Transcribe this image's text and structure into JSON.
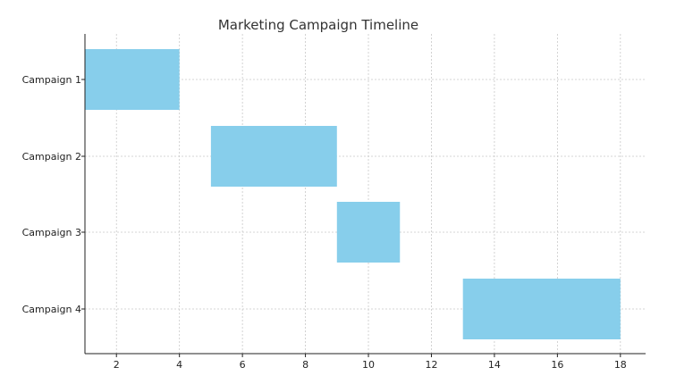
{
  "chart_data": {
    "type": "bar",
    "orientation": "horizontal",
    "subtype": "gantt",
    "title": "Marketing Campaign Timeline",
    "xlabel": "",
    "ylabel": "",
    "xlim": [
      1,
      18.8
    ],
    "x_ticks": [
      2,
      4,
      6,
      8,
      10,
      12,
      14,
      16,
      18
    ],
    "categories": [
      "Campaign 1",
      "Campaign 2",
      "Campaign 3",
      "Campaign 4"
    ],
    "tasks": [
      {
        "label": "Campaign 1",
        "start": 1,
        "end": 4
      },
      {
        "label": "Campaign 2",
        "start": 5,
        "end": 9
      },
      {
        "label": "Campaign 3",
        "start": 9,
        "end": 11
      },
      {
        "label": "Campaign 4",
        "start": 13,
        "end": 18
      }
    ],
    "bar_color": "#87CEEB",
    "grid": true,
    "legend": "none"
  }
}
